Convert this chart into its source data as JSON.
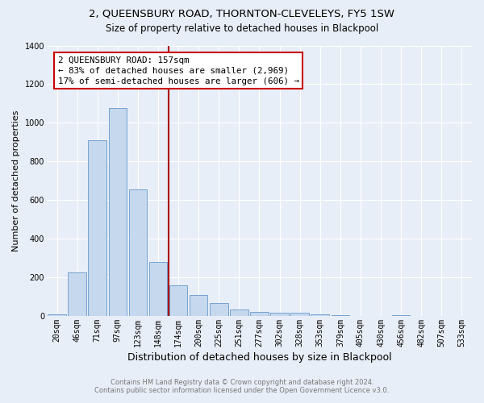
{
  "title": "2, QUEENSBURY ROAD, THORNTON-CLEVELEYS, FY5 1SW",
  "subtitle": "Size of property relative to detached houses in Blackpool",
  "xlabel": "Distribution of detached houses by size in Blackpool",
  "ylabel": "Number of detached properties",
  "footnote1": "Contains HM Land Registry data © Crown copyright and database right 2024.",
  "footnote2": "Contains public sector information licensed under the Open Government Licence v3.0.",
  "bar_labels": [
    "20sqm",
    "46sqm",
    "71sqm",
    "97sqm",
    "123sqm",
    "148sqm",
    "174sqm",
    "200sqm",
    "225sqm",
    "251sqm",
    "277sqm",
    "302sqm",
    "328sqm",
    "353sqm",
    "379sqm",
    "405sqm",
    "430sqm",
    "456sqm",
    "482sqm",
    "507sqm",
    "533sqm"
  ],
  "bar_values": [
    10,
    225,
    910,
    1075,
    655,
    280,
    160,
    110,
    65,
    35,
    20,
    15,
    15,
    10,
    5,
    0,
    0,
    5,
    0,
    0,
    0
  ],
  "bar_color": "#c5d8ee",
  "bar_edge_color": "#6699cc",
  "bg_color": "#e8eef7",
  "vline_color": "#aa0000",
  "vline_x": 5.5,
  "annotation_text_line1": "2 QUEENSBURY ROAD: 157sqm",
  "annotation_text_line2": "← 83% of detached houses are smaller (2,969)",
  "annotation_text_line3": "17% of semi-detached houses are larger (606) →",
  "annotation_box_facecolor": "white",
  "annotation_box_edgecolor": "#cc0000",
  "ylim": [
    0,
    1400
  ],
  "yticks": [
    0,
    200,
    400,
    600,
    800,
    1000,
    1200,
    1400
  ],
  "grid_color": "#ffffff",
  "title_fontsize": 9.5,
  "subtitle_fontsize": 8.5,
  "xlabel_fontsize": 9,
  "ylabel_fontsize": 8,
  "tick_fontsize": 7,
  "ann_fontsize": 7.8,
  "footnote_fontsize": 6,
  "footnote_color": "#777777"
}
